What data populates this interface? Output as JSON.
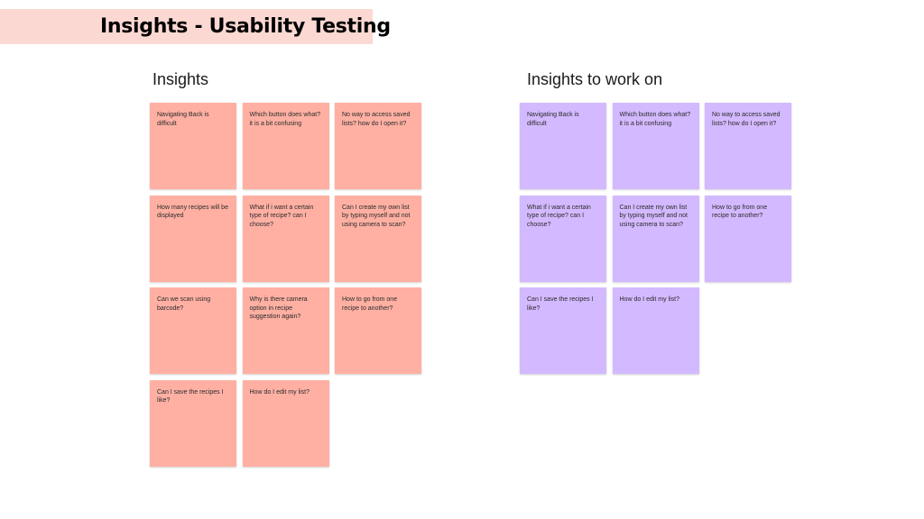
{
  "title": "Insights - Usability Testing",
  "colors": {
    "banner": "#fbd9d2",
    "pink_note": "#ffb0a3",
    "purple_note": "#d3b9ff"
  },
  "sections": [
    {
      "id": "insights",
      "heading": "Insights",
      "color": "#ffb0a3",
      "notes": [
        [
          "Navigating Back is difficult",
          "Which button does what? it is a bit confusing",
          "No way to access saved lists? how do I open it?"
        ],
        [
          "How many recipes will be displayed",
          "What if i want a certain type of recipe? can I choose?",
          "Can I create my own list by typing myself and not using camera to scan?"
        ],
        [
          "Can we scan using barcode?",
          "Why is there camera option in recipe suggestion again?",
          "How to go from one recipe to another?"
        ],
        [
          "Can I save the recipes I like?",
          "How do I edit my list?"
        ]
      ]
    },
    {
      "id": "work",
      "heading": "Insights to work on",
      "color": "#d3b9ff",
      "notes": [
        [
          "Navigating Back is difficult",
          "Which button does what? it is a bit confusing",
          "No way to access saved lists? how do I open it?"
        ],
        [
          "What if i want a certain type of recipe? can I choose?",
          "Can I create my own list by typing myself and not using camera to scan?",
          "How to go from one recipe to another?"
        ],
        [
          "Can I save the recipes I like?",
          "How do I edit my list?"
        ]
      ]
    }
  ]
}
